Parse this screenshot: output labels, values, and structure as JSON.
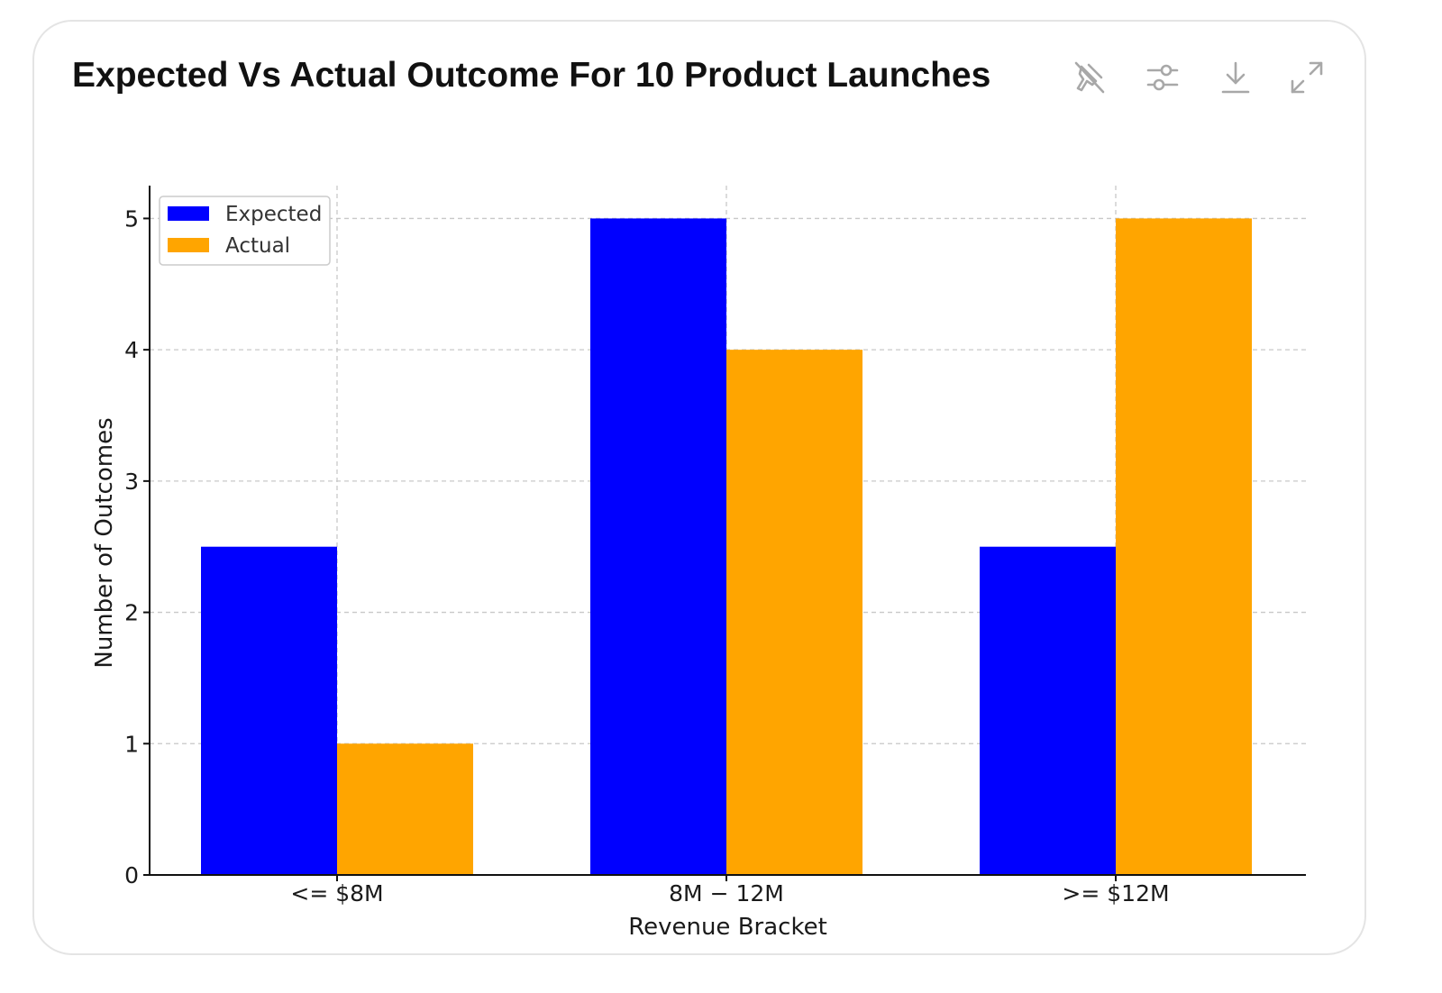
{
  "card": {
    "title": "Expected Vs Actual Outcome For 10 Product Launches"
  },
  "toolbar": {
    "icons": [
      "pin-off-icon",
      "sliders-icon",
      "download-icon",
      "expand-icon"
    ]
  },
  "chart_data": {
    "type": "bar",
    "categories": [
      "<= $8M",
      "8M − 12M",
      ">= $12M"
    ],
    "series": [
      {
        "name": "Expected",
        "values": [
          2.5,
          5,
          2.5
        ],
        "color": "#0000ff"
      },
      {
        "name": "Actual",
        "values": [
          1,
          4,
          5
        ],
        "color": "#ffa500"
      }
    ],
    "xlabel": "Revenue Bracket",
    "ylabel": "Number of Outcomes",
    "ylim": [
      0,
      5.25
    ],
    "yticks": [
      0,
      1,
      2,
      3,
      4,
      5
    ],
    "grid": true,
    "legend": "top-left"
  }
}
